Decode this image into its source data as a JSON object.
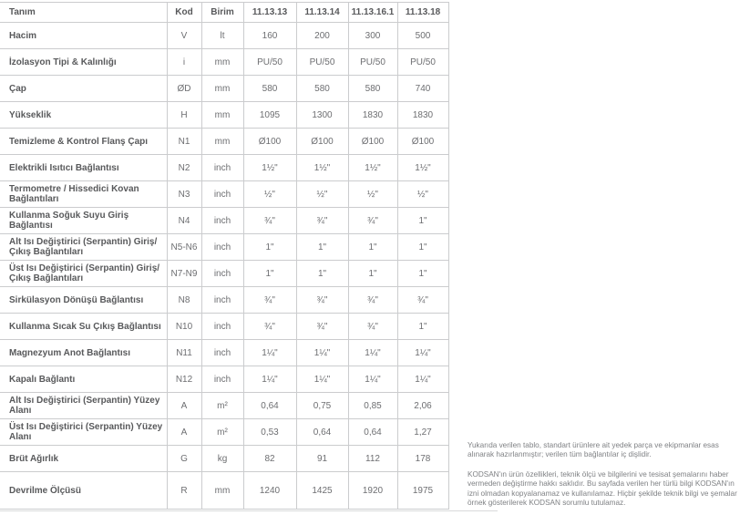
{
  "table": {
    "headers": [
      "Tanım",
      "Kod",
      "Birim",
      "11.13.13",
      "11.13.14",
      "11.13.16.1",
      "11.13.18"
    ],
    "rows": [
      {
        "label": "Hacim",
        "kod": "V",
        "birim": "lt",
        "values": [
          "160",
          "200",
          "300",
          "500"
        ]
      },
      {
        "label": "İzolasyon Tipi & Kalınlığı",
        "kod": "i",
        "birim": "mm",
        "values": [
          "PU/50",
          "PU/50",
          "PU/50",
          "PU/50"
        ]
      },
      {
        "label": "Çap",
        "kod": "ØD",
        "birim": "mm",
        "values": [
          "580",
          "580",
          "580",
          "740"
        ]
      },
      {
        "label": "Yükseklik",
        "kod": "H",
        "birim": "mm",
        "values": [
          "1095",
          "1300",
          "1830",
          "1830"
        ]
      },
      {
        "label": "Temizleme & Kontrol Flanş Çapı",
        "kod": "N1",
        "birim": "mm",
        "values": [
          "Ø100",
          "Ø100",
          "Ø100",
          "Ø100"
        ]
      },
      {
        "label": "Elektrikli Isıtıcı Bağlantısı",
        "kod": "N2",
        "birim": "inch",
        "values": [
          "1½\"",
          "1½\"",
          "1½\"",
          "1½\""
        ]
      },
      {
        "label": "Termometre / Hissedici Kovan Bağlantıları",
        "kod": "N3",
        "birim": "inch",
        "values": [
          "½\"",
          "½\"",
          "½\"",
          "½\""
        ]
      },
      {
        "label": "Kullanma Soğuk Suyu Giriş Bağlantısı",
        "kod": "N4",
        "birim": "inch",
        "values": [
          "¾\"",
          "¾\"",
          "¾\"",
          "1\""
        ]
      },
      {
        "label": "Alt Isı Değiştirici (Serpantin) Giriş/Çıkış Bağlantıları",
        "kod": "N5-N6",
        "birim": "inch",
        "values": [
          "1\"",
          "1\"",
          "1\"",
          "1\""
        ]
      },
      {
        "label": "Üst Isı Değiştirici (Serpantin) Giriş/Çıkış Bağlantıları",
        "kod": "N7-N9",
        "birim": "inch",
        "values": [
          "1\"",
          "1\"",
          "1\"",
          "1\""
        ]
      },
      {
        "label": "Sirkülasyon Dönüşü Bağlantısı",
        "kod": "N8",
        "birim": "inch",
        "values": [
          "¾\"",
          "¾\"",
          "¾\"",
          "¾\""
        ]
      },
      {
        "label": "Kullanma Sıcak Su Çıkış Bağlantısı",
        "kod": "N10",
        "birim": "inch",
        "values": [
          "¾\"",
          "¾\"",
          "¾\"",
          "1\""
        ]
      },
      {
        "label": "Magnezyum Anot Bağlantısı",
        "kod": "N11",
        "birim": "inch",
        "values": [
          "1¼\"",
          "1¼\"",
          "1¼\"",
          "1¼\""
        ]
      },
      {
        "label": "Kapalı Bağlantı",
        "kod": "N12",
        "birim": "inch",
        "values": [
          "1¼\"",
          "1¼\"",
          "1¼\"",
          "1¼\""
        ]
      },
      {
        "label": "Alt Isı Değiştirici (Serpantin) Yüzey Alanı",
        "kod": "A",
        "birim": "m²",
        "values": [
          "0,64",
          "0,75",
          "0,85",
          "2,06"
        ]
      },
      {
        "label": "Üst Isı Değiştirici (Serpantin) Yüzey Alanı",
        "kod": "A",
        "birim": "m²",
        "values": [
          "0,53",
          "0,64",
          "0,64",
          "1,27"
        ]
      },
      {
        "label": "Brüt Ağırlık",
        "kod": "G",
        "birim": "kg",
        "values": [
          "82",
          "91",
          "112",
          "178"
        ]
      },
      {
        "label": "Devrilme Ölçüsü",
        "kod": "R",
        "birim": "mm",
        "values": [
          "1240",
          "1425",
          "1920",
          "1975"
        ]
      }
    ]
  },
  "notes": {
    "paragraph1": "Yukarıda verilen tablo, standart ürünlere ait yedek parça ve ekipmanlar esas alınarak hazırlanmıştır; verilen tüm bağlantılar iç dişlidir.",
    "paragraph2": "KODSAN'ın ürün özellikleri, teknik ölçü ve bilgilerini ve tesisat şemalarını haber vermeden değiştirme hakkı saklıdır. Bu sayfada verilen her türlü bilgi KODSAN'ın izni olmadan kopyalanamaz ve kullanılamaz. Hiçbir şekilde teknik bilgi ve şemalar örnek gösterilerek KODSAN sorumlu tutulamaz."
  },
  "colors": {
    "table_border": "#cbccce",
    "label_text": "#58595b",
    "value_text": "#6d6e71",
    "note_text": "#7f8184",
    "background": "#ffffff"
  }
}
